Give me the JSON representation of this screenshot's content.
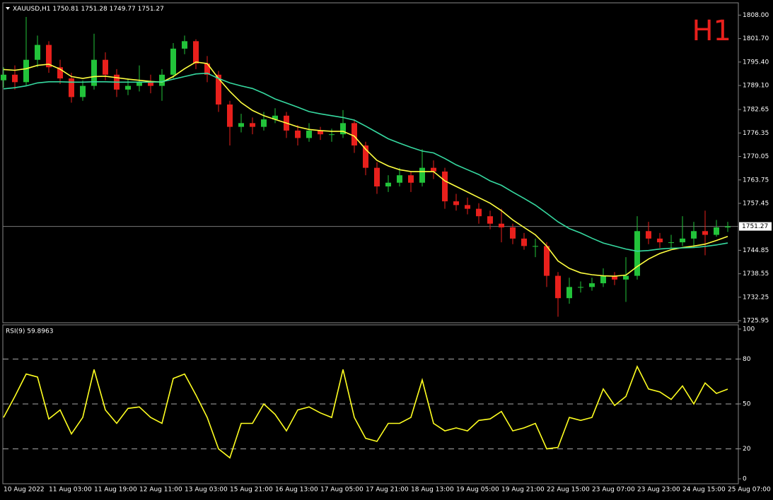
{
  "chart_data": [
    {
      "type": "candlestick",
      "title": "H1",
      "symbol": "XAUUSD,H1",
      "quote": [
        1750.81,
        1751.28,
        1749.77,
        1751.27
      ],
      "categories": [
        "10 Aug 2022",
        null,
        null,
        null,
        "11 Aug 03:00",
        null,
        null,
        null,
        "11 Aug 19:00",
        null,
        null,
        null,
        "12 Aug 11:00",
        null,
        null,
        null,
        "13 Aug 03:00",
        null,
        null,
        null,
        "15 Aug 21:00",
        null,
        null,
        null,
        "16 Aug 13:00",
        null,
        null,
        null,
        "17 Aug 05:00",
        null,
        null,
        null,
        "17 Aug 21:00",
        null,
        null,
        null,
        "18 Aug 13:00",
        null,
        null,
        null,
        "19 Aug 05:00",
        null,
        null,
        null,
        "19 Aug 21:00",
        null,
        null,
        null,
        "22 Aug 15:00",
        null,
        null,
        null,
        "23 Aug 07:00",
        null,
        null,
        null,
        "23 Aug 23:00",
        null,
        null,
        null,
        "24 Aug 15:00",
        null,
        null,
        null,
        "25 Aug 07:00"
      ],
      "open": [
        1790.5,
        1792,
        1790,
        1796,
        1800,
        1794,
        1791,
        1786,
        1789,
        1796,
        1792,
        1788,
        1789,
        1790,
        1789,
        1792,
        1799,
        1801,
        1795,
        1792,
        1784,
        1778,
        1779,
        1778,
        1780,
        1781,
        1777,
        1775,
        1777,
        1776,
        1776,
        1779,
        1773,
        1767,
        1762,
        1763,
        1765,
        1763,
        1767,
        1766,
        1758,
        1757,
        1756,
        1754,
        1752,
        1751,
        1748,
        1746,
        1746,
        1738,
        1732,
        1735,
        1735,
        1736,
        1738,
        1737,
        1738,
        1750,
        1748,
        1747,
        1747,
        1748,
        1750,
        1749,
        1751
      ],
      "high": [
        1794,
        1794.5,
        1807.5,
        1802.5,
        1801,
        1796,
        1792.5,
        1790.5,
        1803,
        1798,
        1793.5,
        1791,
        1794.5,
        1792,
        1793.5,
        1800.5,
        1802.5,
        1801.5,
        1797,
        1793,
        1785,
        1781.5,
        1780.5,
        1782,
        1783,
        1782,
        1778.5,
        1779,
        1778,
        1777.5,
        1782.5,
        1780,
        1774,
        1768.5,
        1765,
        1767,
        1766,
        1772,
        1769,
        1767,
        1760,
        1759,
        1757.5,
        1755.5,
        1756,
        1752,
        1749.5,
        1748,
        1747,
        1739,
        1737.5,
        1736.5,
        1737.5,
        1740,
        1739,
        1743,
        1754,
        1752.5,
        1749.5,
        1749,
        1754,
        1752.5,
        1755.5,
        1753,
        1752.5
      ],
      "low": [
        1788.5,
        1788,
        1789,
        1794,
        1792.5,
        1789.5,
        1784.5,
        1785,
        1788,
        1790.5,
        1786,
        1786.5,
        1787.5,
        1787,
        1785,
        1791,
        1797.5,
        1793.5,
        1790,
        1782,
        1773,
        1776.5,
        1776,
        1777,
        1779,
        1775,
        1773,
        1774,
        1774.5,
        1774,
        1775,
        1771,
        1765,
        1760,
        1760.5,
        1762,
        1760.5,
        1762,
        1764,
        1756,
        1755.5,
        1754.5,
        1752,
        1750.5,
        1747,
        1746.5,
        1745,
        1743,
        1735,
        1727,
        1730.5,
        1733.5,
        1734,
        1735,
        1735.5,
        1731,
        1737,
        1746.5,
        1745.5,
        1745.5,
        1746,
        1745.5,
        1743.5,
        1748.5,
        1749.77
      ],
      "close": [
        1792,
        1790,
        1796,
        1800,
        1794,
        1791,
        1786,
        1789,
        1796,
        1792,
        1788,
        1789,
        1790,
        1789,
        1792,
        1799,
        1801,
        1795,
        1792,
        1784,
        1778,
        1779,
        1778,
        1780,
        1781,
        1777,
        1775,
        1777,
        1776,
        1776,
        1779,
        1773,
        1767,
        1762,
        1763,
        1765,
        1763,
        1767,
        1766,
        1758,
        1757,
        1756,
        1754,
        1752,
        1751,
        1748,
        1746,
        1746,
        1738,
        1732,
        1735,
        1735,
        1736,
        1738,
        1737,
        1738,
        1750,
        1748,
        1747,
        1747,
        1748,
        1750,
        1749,
        1751,
        1751.27
      ],
      "up_color": "#22c33a",
      "down_color": "#e8201c",
      "title_color": "#e8201c",
      "series": [
        {
          "color": "#ffff40",
          "values": [
            1793.4,
            1793.2,
            1793.6,
            1794.5,
            1794.8,
            1793.5,
            1791.5,
            1791,
            1791.5,
            1791.6,
            1791.2,
            1790.8,
            1790.5,
            1790.2,
            1790,
            1791.5,
            1793.6,
            1795.4,
            1795,
            1791,
            1787.5,
            1784.5,
            1782.4,
            1781,
            1780,
            1779,
            1778,
            1777.3,
            1777,
            1776.8,
            1776.8,
            1775.5,
            1772,
            1769,
            1767.5,
            1766.5,
            1766,
            1766,
            1766,
            1763.5,
            1762,
            1760.5,
            1759,
            1757.5,
            1755.5,
            1753,
            1751,
            1749,
            1746,
            1742,
            1740,
            1738.8,
            1738.3,
            1738,
            1737.9,
            1738.2,
            1740.5,
            1742.5,
            1744,
            1745,
            1745.6,
            1746,
            1746.5,
            1747.5,
            1748.6
          ]
        },
        {
          "color": "#36d9a0",
          "values": [
            1788.2,
            1788.5,
            1789,
            1789.8,
            1790.1,
            1790.1,
            1790,
            1790,
            1790.1,
            1790.1,
            1790,
            1790,
            1790,
            1790,
            1790.1,
            1790.8,
            1791.5,
            1792.2,
            1792.4,
            1791,
            1789.8,
            1789,
            1788.3,
            1787,
            1785.5,
            1784.4,
            1783.3,
            1782.1,
            1781.5,
            1781,
            1780.5,
            1779.8,
            1778.2,
            1776.5,
            1774.8,
            1773.6,
            1772.5,
            1771.5,
            1771,
            1769.5,
            1767.8,
            1766.5,
            1765.2,
            1763.5,
            1762.3,
            1760.5,
            1758.8,
            1757,
            1754.8,
            1752.5,
            1750.7,
            1749.5,
            1748.1,
            1746.8,
            1746,
            1745.2,
            1744.6,
            1744.8,
            1745.2,
            1745.4,
            1745.5,
            1745.6,
            1745.9,
            1746.3,
            1746.8
          ]
        }
      ],
      "last_price": 1751.27,
      "ylim": [
        1725.4,
        1811.3
      ],
      "yticks": [
        {
          "value": 1808,
          "label": "1808.00"
        },
        {
          "value": 1801.7,
          "label": "1801.70"
        },
        {
          "value": 1795.4,
          "label": "1795.40"
        },
        {
          "value": 1789.1,
          "label": "1789.10"
        },
        1782.65,
        1776.35,
        1770.05,
        1763.75,
        1757.45,
        1744.85,
        1738.55,
        1732.25,
        1725.95
      ]
    },
    {
      "type": "line",
      "title": "RSI(9) 59.8963",
      "series": [
        {
          "color": "#ffff20",
          "values": [
            41,
            55,
            70,
            68,
            40,
            46,
            30,
            41,
            73,
            46,
            37,
            47,
            48,
            41,
            37,
            67,
            70,
            56,
            41,
            20,
            14,
            37,
            37,
            50,
            43,
            32,
            46,
            48,
            44,
            41,
            73,
            41,
            27,
            25,
            37,
            37,
            41,
            66,
            37,
            32,
            34,
            32,
            39,
            40,
            45,
            32,
            34,
            37,
            20,
            21,
            41,
            39,
            41,
            60,
            49,
            55,
            75,
            60,
            58,
            53,
            62,
            50,
            64,
            57,
            59.9
          ]
        }
      ],
      "ylim": [
        -3.3,
        102.8
      ],
      "yticks": [
        100,
        80,
        50,
        20,
        0
      ],
      "levels": [
        80,
        50,
        20
      ]
    }
  ]
}
